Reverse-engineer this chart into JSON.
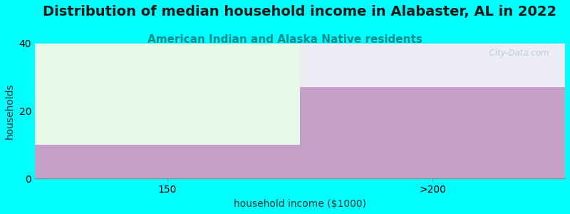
{
  "title": "Distribution of median household income in Alabaster, AL in 2022",
  "subtitle": "American Indian and Alaska Native residents",
  "xlabel": "household income ($1000)",
  "ylabel": "households",
  "categories": [
    "150",
    ">200"
  ],
  "values": [
    10,
    27
  ],
  "ylim": [
    0,
    40
  ],
  "yticks": [
    0,
    20,
    40
  ],
  "background_color": "#00ffff",
  "bar_color_solid": "#c4a0c8",
  "bar_color_light_green": "#e8f8e8",
  "bar_color_light_lavender": "#f0ecf5",
  "title_fontsize": 14,
  "subtitle_fontsize": 11,
  "subtitle_color": "#008b8b",
  "axis_label_fontsize": 10,
  "tick_fontsize": 10,
  "watermark": "  City-Data.com",
  "watermark_color": "#aacccc"
}
